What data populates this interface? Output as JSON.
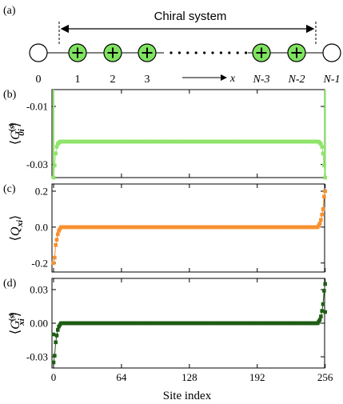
{
  "figure": {
    "panel_a": {
      "tag": "(a)",
      "chiral_label": "Chiral system",
      "site_labels": [
        "0",
        "1",
        "2",
        "3",
        "N-3",
        "N-2",
        "N-1"
      ],
      "x_arrow_label": "x",
      "colors": {
        "filled_site": "#7ee35e",
        "site_edge": "#000000",
        "empty_site": "#ffffff"
      }
    },
    "shared_x": {
      "label": "Site index",
      "ticks": [
        "0",
        "64",
        "128",
        "192",
        "256"
      ],
      "tick_values": [
        0,
        64,
        128,
        192,
        256
      ],
      "range": [
        0,
        257
      ]
    }
  },
  "chart_data": [
    {
      "type": "scatter",
      "panel": "(b)",
      "ylabel": "⟨G_{0i}^{(s)}⟩",
      "ylabel_main": "G",
      "ylabel_sup": "(s)",
      "ylabel_sub": "0i",
      "color": "#8ee56a",
      "ylim": [
        -0.0345,
        -0.0042
      ],
      "yticks": [
        -0.03,
        -0.01
      ],
      "ytick_labels": [
        "-0.03",
        "-0.01"
      ],
      "x_range": [
        0,
        256
      ],
      "points": [
        [
          0,
          -0.0345
        ],
        [
          1,
          -0.0303
        ],
        [
          2,
          -0.0262
        ],
        [
          3,
          -0.0239
        ],
        [
          4,
          -0.0229
        ],
        [
          5,
          -0.0225
        ],
        [
          6,
          -0.0222
        ],
        [
          250,
          -0.0222
        ],
        [
          251,
          -0.0225
        ],
        [
          252,
          -0.0229
        ],
        [
          253,
          -0.0239
        ],
        [
          254,
          -0.0262
        ],
        [
          255,
          -0.0303
        ],
        [
          256,
          -0.0345
        ]
      ],
      "bulk": {
        "from": 7,
        "to": 249,
        "value": -0.0221
      },
      "edge_spikes": [
        [
          0,
          -0.0042
        ],
        [
          256,
          -0.0042
        ]
      ]
    },
    {
      "type": "scatter",
      "panel": "(c)",
      "ylabel": "⟨Q_{xi}⟩",
      "ylabel_main": "Q",
      "ylabel_sub": "xi",
      "color": "#f7902e",
      "ylim": [
        -0.25,
        0.24
      ],
      "yticks": [
        -0.2,
        0.0,
        0.2
      ],
      "ytick_labels": [
        "-0.2",
        "0.0",
        "0.2"
      ],
      "x_range": [
        0,
        256
      ],
      "points": [
        [
          0,
          -0.2
        ],
        [
          1,
          -0.17
        ],
        [
          2,
          -0.1
        ],
        [
          3,
          -0.07
        ],
        [
          4,
          -0.04
        ],
        [
          5,
          -0.02
        ],
        [
          6,
          -0.01
        ],
        [
          250,
          0.01
        ],
        [
          251,
          0.02
        ],
        [
          252,
          0.04
        ],
        [
          253,
          0.07
        ],
        [
          254,
          0.1
        ],
        [
          255,
          0.17
        ],
        [
          256,
          0.2
        ]
      ],
      "bulk": {
        "from": 7,
        "to": 249,
        "value": 0.0
      }
    },
    {
      "type": "scatter",
      "panel": "(d)",
      "ylabel": "⟨G_{xi}^{(s)}⟩",
      "ylabel_main": "G",
      "ylabel_sup": "(s)",
      "ylabel_sub": "xi",
      "color": "#1f5c14",
      "ylim": [
        -0.04,
        0.04
      ],
      "yticks": [
        -0.03,
        0.0,
        0.03
      ],
      "ytick_labels": [
        "-0.03",
        "0.00",
        "0.03"
      ],
      "x_range": [
        0,
        256
      ],
      "points": [
        [
          0,
          -0.035
        ],
        [
          1,
          -0.029
        ],
        [
          2,
          -0.017
        ],
        [
          3,
          -0.011
        ],
        [
          4,
          -0.006
        ],
        [
          5,
          -0.003
        ],
        [
          6,
          -0.0015
        ],
        [
          250,
          0.0015
        ],
        [
          251,
          0.003
        ],
        [
          252,
          0.006
        ],
        [
          253,
          0.011
        ],
        [
          254,
          0.017
        ],
        [
          255,
          0.029
        ],
        [
          256,
          0.035
        ]
      ],
      "edge_values": [
        [
          0,
          -0.01
        ],
        [
          256,
          0.01
        ]
      ],
      "bulk": {
        "from": 7,
        "to": 249,
        "value": 0.0
      }
    }
  ]
}
